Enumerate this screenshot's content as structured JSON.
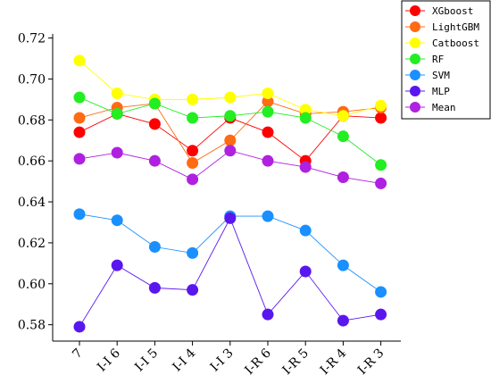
{
  "chart_data": {
    "type": "line",
    "title": "",
    "xlabel": "",
    "ylabel": "",
    "categories": [
      "7",
      "I-I 6",
      "I-I 5",
      "I-I 4",
      "I-I 3",
      "I-R 6",
      "I-R 5",
      "I-R 4",
      "I-R 3"
    ],
    "ylim": [
      0.572,
      0.722
    ],
    "yticks": [
      0.58,
      0.6,
      0.62,
      0.64,
      0.66,
      0.68,
      0.7,
      0.72
    ],
    "ytick_labels": [
      "0.58",
      "0.60",
      "0.62",
      "0.64",
      "0.66",
      "0.68",
      "0.70",
      "0.72"
    ],
    "grid": false,
    "legend_position": "top-right",
    "series": [
      {
        "name": "XGboost",
        "color": "#ff0000",
        "values": [
          0.674,
          0.683,
          0.678,
          0.665,
          0.681,
          0.674,
          0.66,
          0.682,
          0.681
        ]
      },
      {
        "name": "LightGBM",
        "color": "#ff6a13",
        "values": [
          0.681,
          0.686,
          0.688,
          0.659,
          0.67,
          0.689,
          0.683,
          0.684,
          0.686
        ]
      },
      {
        "name": "Catboost",
        "color": "#ffff00",
        "values": [
          0.709,
          0.693,
          0.69,
          0.69,
          0.691,
          0.693,
          0.685,
          0.682,
          0.687
        ]
      },
      {
        "name": "RF",
        "color": "#22ee22",
        "values": [
          0.691,
          0.683,
          0.688,
          0.681,
          0.682,
          0.684,
          0.681,
          0.672,
          0.658
        ]
      },
      {
        "name": "SVM",
        "color": "#1a90ff",
        "values": [
          0.634,
          0.631,
          0.618,
          0.615,
          0.633,
          0.633,
          0.626,
          0.609,
          0.596
        ]
      },
      {
        "name": "MLP",
        "color": "#5a16ee",
        "values": [
          0.579,
          0.609,
          0.598,
          0.597,
          0.632,
          0.585,
          0.606,
          0.582,
          0.585
        ]
      },
      {
        "name": "Mean",
        "color": "#b020e0",
        "values": [
          0.661,
          0.664,
          0.66,
          0.651,
          0.665,
          0.66,
          0.657,
          0.652,
          0.649
        ]
      }
    ]
  }
}
